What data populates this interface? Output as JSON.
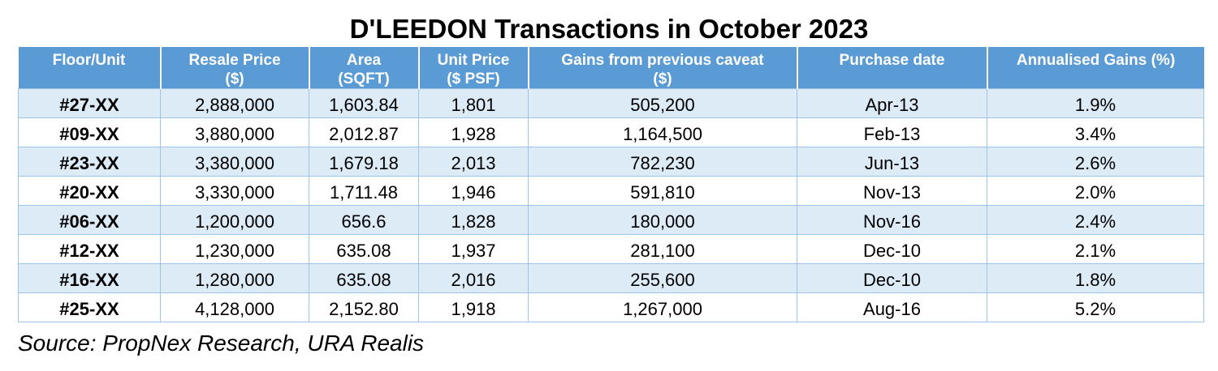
{
  "title": "D'LEEDON Transactions in October 2023",
  "table": {
    "headers": [
      {
        "line1": "Floor/Unit",
        "line2": ""
      },
      {
        "line1": "Resale Price",
        "line2": "($)"
      },
      {
        "line1": "Area",
        "line2": "(SQFT)"
      },
      {
        "line1": "Unit Price",
        "line2": "($ PSF)"
      },
      {
        "line1": "Gains from previous caveat",
        "line2": "($)"
      },
      {
        "line1": "Purchase date",
        "line2": ""
      },
      {
        "line1": "Annualised Gains (%)",
        "line2": ""
      }
    ],
    "rows": [
      [
        "#27-XX",
        "2,888,000",
        "1,603.84",
        "1,801",
        "505,200",
        "Apr-13",
        "1.9%"
      ],
      [
        "#09-XX",
        "3,880,000",
        "2,012.87",
        "1,928",
        "1,164,500",
        "Feb-13",
        "3.4%"
      ],
      [
        "#23-XX",
        "3,380,000",
        "1,679.18",
        "2,013",
        "782,230",
        "Jun-13",
        "2.6%"
      ],
      [
        "#20-XX",
        "3,330,000",
        "1,711.48",
        "1,946",
        "591,810",
        "Nov-13",
        "2.0%"
      ],
      [
        "#06-XX",
        "1,200,000",
        "656.6",
        "1,828",
        "180,000",
        "Nov-16",
        "2.4%"
      ],
      [
        "#12-XX",
        "1,230,000",
        "635.08",
        "1,937",
        "281,100",
        "Dec-10",
        "2.1%"
      ],
      [
        "#16-XX",
        "1,280,000",
        "635.08",
        "2,016",
        "255,600",
        "Dec-10",
        "1.8%"
      ],
      [
        "#25-XX",
        "4,128,000",
        "2,152.80",
        "1,918",
        "1,267,000",
        "Aug-16",
        "5.2%"
      ]
    ]
  },
  "source": "Source: PropNex Research, URA Realis",
  "colors": {
    "header_bg": "#5b9bd5",
    "header_text": "#ffffff",
    "alt_row_bg": "#ddebf7",
    "border": "#9dc3e6"
  }
}
